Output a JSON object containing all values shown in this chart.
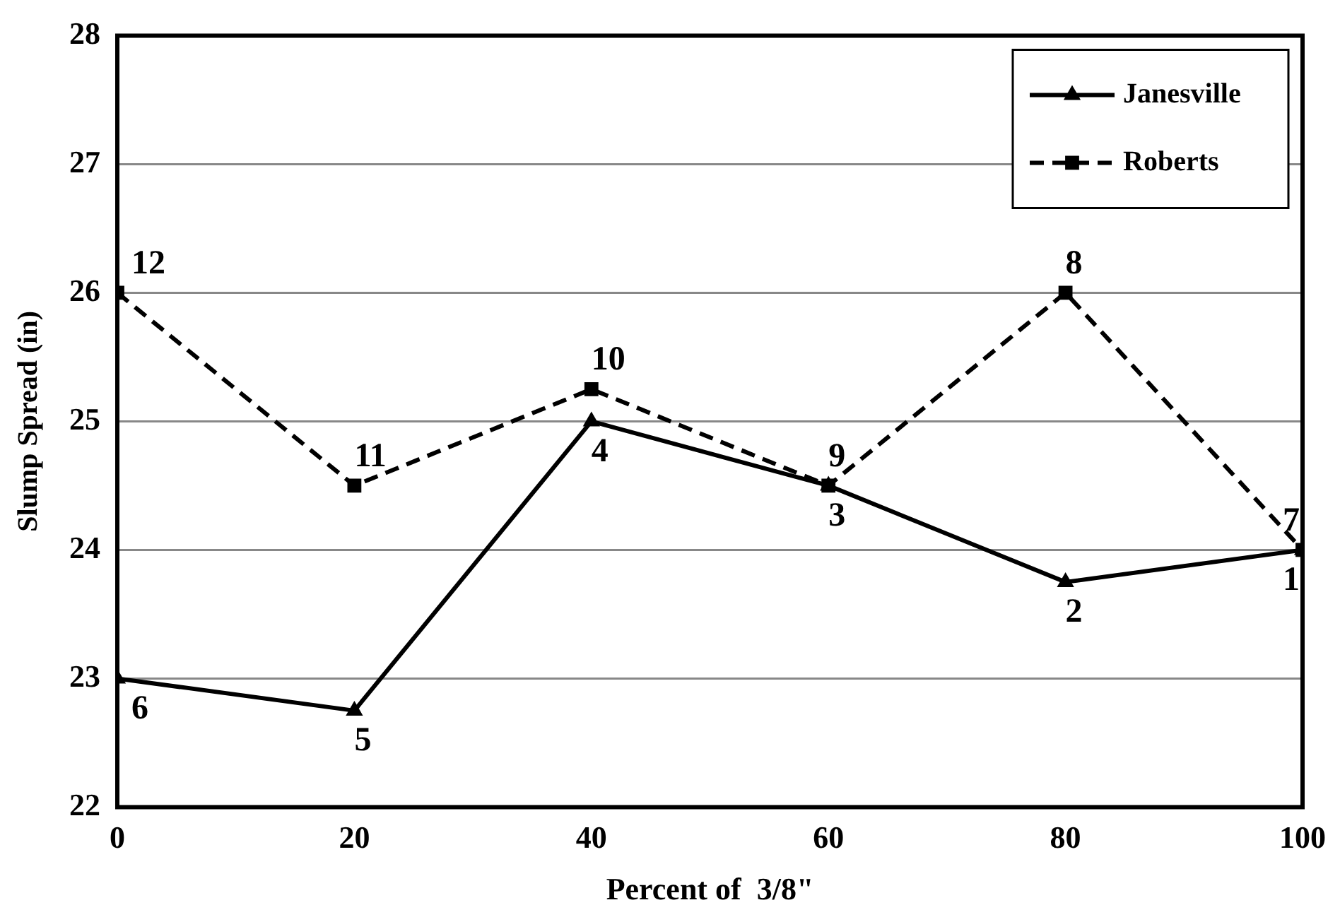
{
  "chart_data": {
    "type": "line",
    "xlabel": "Percent of  3/8\"",
    "ylabel": "Slump Spread (in)",
    "x": [
      0,
      20,
      40,
      60,
      80,
      100
    ],
    "xlim": [
      0,
      100
    ],
    "xticks": [
      0,
      20,
      40,
      60,
      80,
      100
    ],
    "ylim": [
      22,
      28
    ],
    "yticks": [
      22,
      23,
      24,
      25,
      26,
      27,
      28
    ],
    "grid": "y",
    "legend": "top right",
    "series": [
      {
        "name": "Janesville",
        "color": "#000000",
        "marker": "triangle",
        "line_style": "solid",
        "values": [
          23,
          22.75,
          25,
          24.5,
          23.75,
          24
        ]
      },
      {
        "name": "Roberts",
        "color": "#000000",
        "marker": "square",
        "line_style": "dashed",
        "values": [
          26,
          24.5,
          25.25,
          24.5,
          26,
          24
        ]
      }
    ],
    "annotations": [
      {
        "text": "6",
        "x": 0,
        "y": 23
      },
      {
        "text": "5",
        "x": 20,
        "y": 22.75
      },
      {
        "text": "4",
        "x": 40,
        "y": 25
      },
      {
        "text": "3",
        "x": 60,
        "y": 24.5
      },
      {
        "text": "2",
        "x": 80,
        "y": 23.75
      },
      {
        "text": "1",
        "x": 100,
        "y": 24
      },
      {
        "text": "12",
        "x": 0,
        "y": 26
      },
      {
        "text": "11",
        "x": 20,
        "y": 24.5
      },
      {
        "text": "10",
        "x": 40,
        "y": 25.25
      },
      {
        "text": "9",
        "x": 60,
        "y": 24.5
      },
      {
        "text": "8",
        "x": 80,
        "y": 26
      },
      {
        "text": "7",
        "x": 100,
        "y": 24
      }
    ]
  }
}
